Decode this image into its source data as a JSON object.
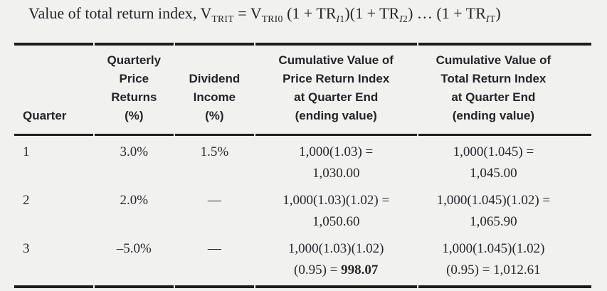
{
  "page": {
    "background_color": "#f1f2f0",
    "text_color": "#26262c",
    "rule_color": "#1d1d1d"
  },
  "formula": {
    "lead": "Value of total return index, V",
    "sub_trit": "TRIT",
    "equals": " = V",
    "sub_tri0": "TRI0",
    "seg1": " (1 + TR",
    "sub1_italic": "I",
    "sub1_plain": "1",
    "seg2": ")(1 + TR",
    "sub2_italic": "I",
    "sub2_plain": "2",
    "seg3": ") … (1 + TR",
    "sub3_italic": "I",
    "sub3_plain": "T",
    "seg4": ")"
  },
  "table": {
    "header": {
      "quarter": [
        "Quarter"
      ],
      "price_returns": [
        "Quarterly",
        "Price",
        "Returns",
        "(%)"
      ],
      "dividend": [
        "Dividend",
        "Income",
        "(%)"
      ],
      "price_index": [
        "Cumulative Value of",
        "Price Return Index",
        "at Quarter End",
        "(ending value)"
      ],
      "total_index": [
        "Cumulative Value of",
        "Total Return Index",
        "at Quarter End",
        "(ending value)"
      ]
    },
    "rows": [
      {
        "quarter": "1",
        "price_return": "3.0%",
        "dividend": "1.5%",
        "pri_l1": "1,000(1.03) =",
        "pri_l2": "1,030.00",
        "tri_l1": "1,000(1.045) =",
        "tri_l2": "1,045.00"
      },
      {
        "quarter": "2",
        "price_return": "2.0%",
        "dividend": "—",
        "pri_l1": "1,000(1.03)(1.02) =",
        "pri_l2": "1,050.60",
        "tri_l1": "1,000(1.045)(1.02) =",
        "tri_l2": "1,065.90"
      },
      {
        "quarter": "3",
        "price_return": "–5.0%",
        "dividend": "—",
        "pri_l1": "1,000(1.03)(1.02)",
        "pri_l2_pre": "(0.95) = ",
        "pri_l2_bold": "998.07",
        "tri_l1": "1,000(1.045)(1.02)",
        "tri_l2": "(0.95) = 1,012.61"
      }
    ]
  }
}
